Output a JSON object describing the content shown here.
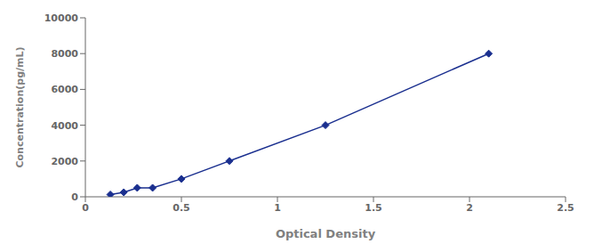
{
  "chart_data": {
    "type": "line",
    "x": [
      0.13,
      0.2,
      0.27,
      0.35,
      0.5,
      0.75,
      1.25,
      2.1
    ],
    "values": [
      125,
      250,
      500,
      500,
      1000,
      2000,
      4000,
      8000
    ],
    "color": "#1a2f8f",
    "marker": "diamond",
    "line_style": "solid",
    "xlabel": "Optical Density",
    "ylabel": "Concentration(pg/mL)",
    "xlim": [
      0,
      2.5
    ],
    "ylim": [
      0,
      10000
    ],
    "xticks": [
      0,
      0.5,
      1,
      1.5,
      2,
      2.5
    ],
    "yticks": [
      0,
      2000,
      4000,
      6000,
      8000,
      10000
    ],
    "grid": false
  }
}
